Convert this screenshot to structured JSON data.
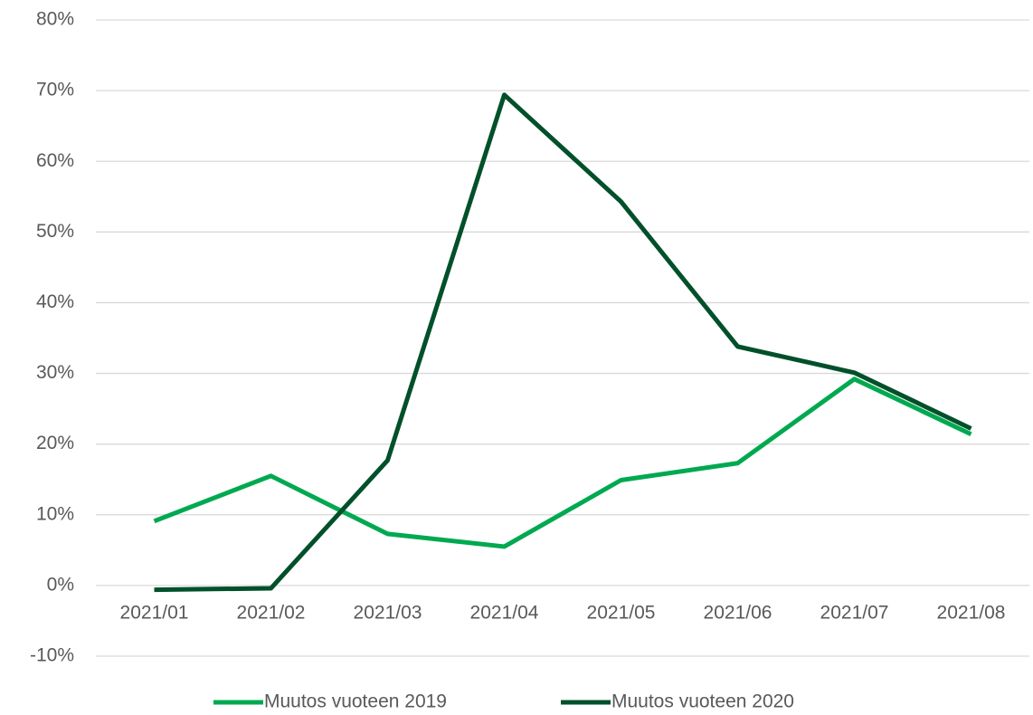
{
  "chart_data": {
    "type": "line",
    "categories": [
      "2021/01",
      "2021/02",
      "2021/03",
      "2021/04",
      "2021/05",
      "2021/06",
      "2021/07",
      "2021/08"
    ],
    "series": [
      {
        "name": "Muutos vuoteen 2019",
        "color": "#00a950",
        "values": [
          9.1,
          15.5,
          7.3,
          5.5,
          14.9,
          17.3,
          29.2,
          21.4
        ]
      },
      {
        "name": "Muutos vuoteen 2020",
        "color": "#00502a",
        "values": [
          -0.6,
          -0.4,
          17.7,
          69.4,
          54.3,
          33.8,
          30.1,
          22.2
        ]
      }
    ],
    "ylim": [
      -10,
      80
    ],
    "yticks": [
      {
        "value": -10,
        "label": "-10%"
      },
      {
        "value": 0,
        "label": "0%"
      },
      {
        "value": 10,
        "label": "10%"
      },
      {
        "value": 20,
        "label": "20%"
      },
      {
        "value": 30,
        "label": "30%"
      },
      {
        "value": 40,
        "label": "40%"
      },
      {
        "value": 50,
        "label": "50%"
      },
      {
        "value": 60,
        "label": "60%"
      },
      {
        "value": 70,
        "label": "70%"
      },
      {
        "value": 80,
        "label": "80%"
      }
    ],
    "grid": true,
    "legend": "bottom"
  }
}
